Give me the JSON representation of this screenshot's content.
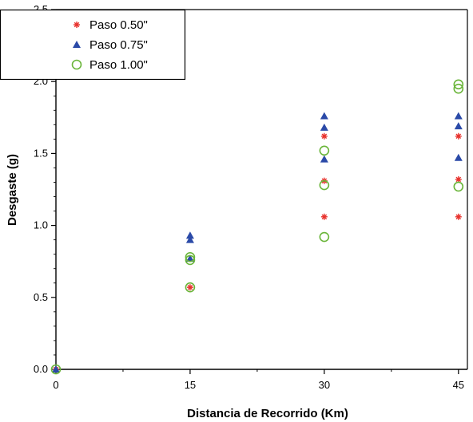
{
  "chart_data": {
    "type": "scatter",
    "title": "",
    "xlabel": "Distancia de Recorrido (Km)",
    "ylabel": "Desgaste (g)",
    "xlim": [
      0,
      46
    ],
    "ylim": [
      0,
      2.5
    ],
    "x_ticks": [
      0,
      15,
      30,
      45
    ],
    "x_tick_labels": [
      "0",
      "15",
      "30",
      "45"
    ],
    "y_ticks": [
      0.0,
      0.5,
      1.0,
      1.5,
      2.0,
      2.5
    ],
    "y_tick_labels": [
      "0.0",
      "0.5",
      "1.0",
      "1.5",
      "2.0",
      "2.5"
    ],
    "grid": false,
    "legend_position": "top-left",
    "series": [
      {
        "name": "Paso 0.50\"",
        "marker": "asterisk",
        "color": "#e8322d",
        "points": [
          [
            0,
            0.0
          ],
          [
            15,
            0.57
          ],
          [
            30,
            1.06
          ],
          [
            30,
            1.31
          ],
          [
            30,
            1.62
          ],
          [
            45,
            1.06
          ],
          [
            45,
            1.32
          ],
          [
            45,
            1.62
          ]
        ]
      },
      {
        "name": "Paso 0.75\"",
        "marker": "triangle",
        "color": "#2b4aa8",
        "points": [
          [
            0,
            0.0
          ],
          [
            15,
            0.77
          ],
          [
            15,
            0.9
          ],
          [
            15,
            0.93
          ],
          [
            30,
            1.46
          ],
          [
            30,
            1.68
          ],
          [
            30,
            1.76
          ],
          [
            45,
            1.47
          ],
          [
            45,
            1.69
          ],
          [
            45,
            1.76
          ]
        ]
      },
      {
        "name": "Paso 1.00\"",
        "marker": "circle",
        "color": "#6ab53a",
        "points": [
          [
            0,
            0.0
          ],
          [
            15,
            0.57
          ],
          [
            15,
            0.76
          ],
          [
            15,
            0.78
          ],
          [
            30,
            0.92
          ],
          [
            30,
            1.28
          ],
          [
            30,
            1.52
          ],
          [
            45,
            1.27
          ],
          [
            45,
            1.95
          ],
          [
            45,
            1.98
          ]
        ]
      }
    ]
  }
}
